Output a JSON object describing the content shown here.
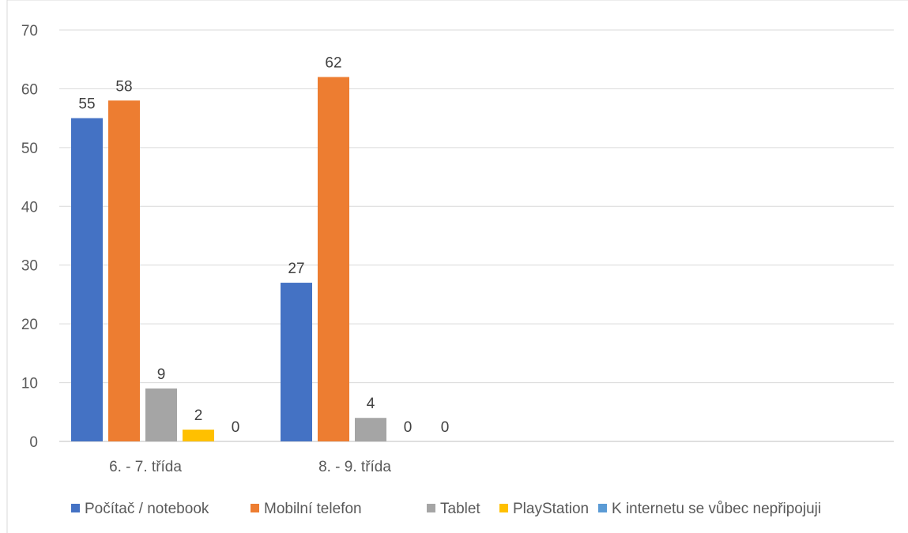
{
  "chart_data": {
    "type": "bar",
    "categories": [
      "6. - 7. třída",
      "8. - 9. třída"
    ],
    "series": [
      {
        "name": "Počítač / notebook",
        "values": [
          55,
          27
        ],
        "color": "#4472C4"
      },
      {
        "name": "Mobilní telefon",
        "values": [
          58,
          62
        ],
        "color": "#ED7D31"
      },
      {
        "name": "Tablet",
        "values": [
          9,
          4
        ],
        "color": "#A5A5A5"
      },
      {
        "name": "PlayStation",
        "values": [
          2,
          0
        ],
        "color": "#FFC000"
      },
      {
        "name": "K internetu se vůbec nepřipojuji",
        "values": [
          0,
          0
        ],
        "color": "#5B9BD5"
      }
    ],
    "ylim": [
      0,
      70
    ],
    "yticks": [
      0,
      10,
      20,
      30,
      40,
      50,
      60,
      70
    ],
    "grid": true,
    "legend": "bottom",
    "data_labels": true
  }
}
